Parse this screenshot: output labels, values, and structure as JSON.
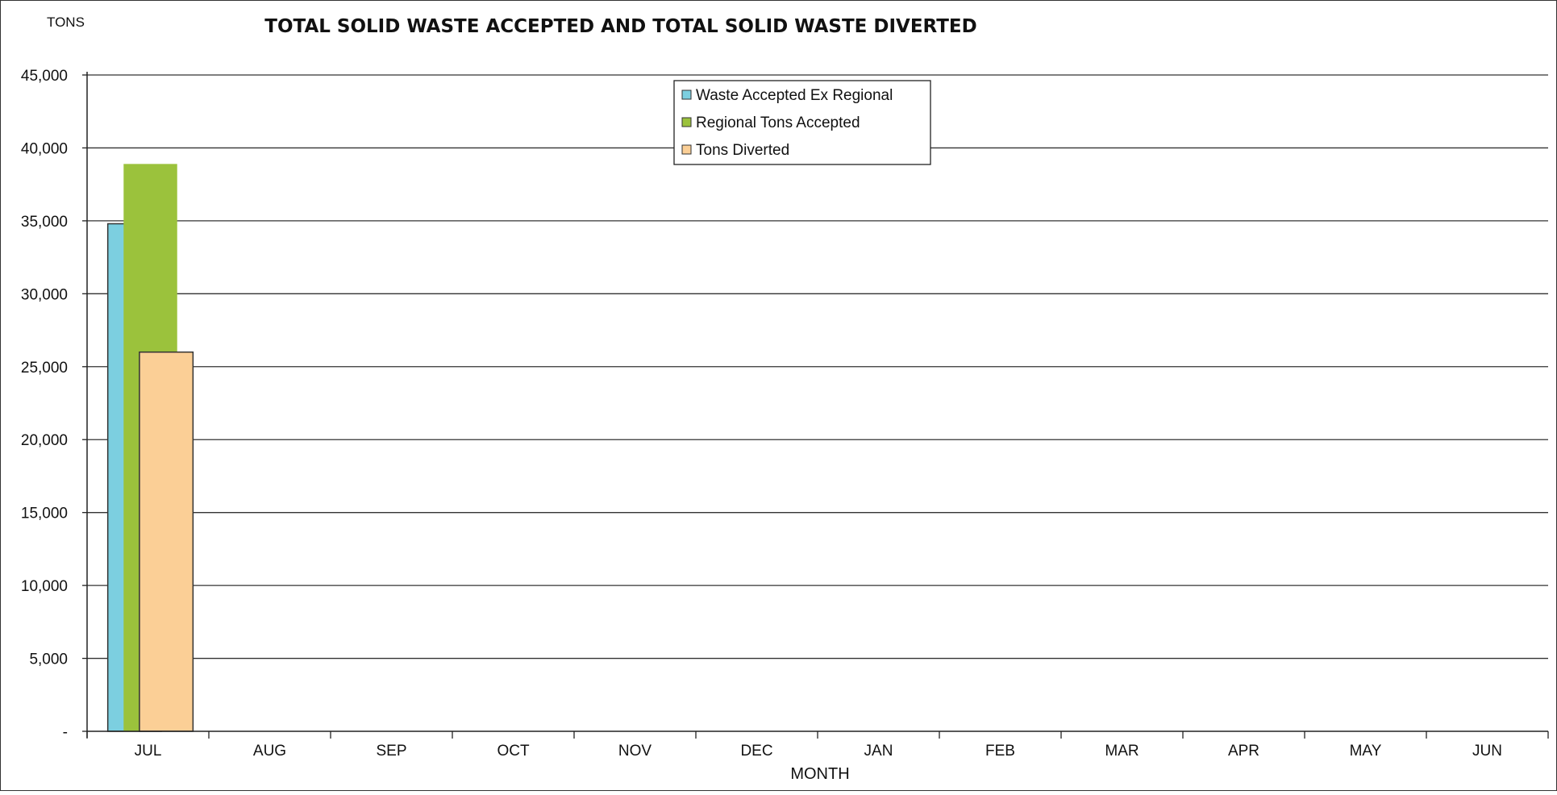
{
  "chart_data": {
    "type": "bar",
    "title": "TOTAL SOLID WASTE ACCEPTED AND TOTAL SOLID WASTE DIVERTED",
    "ylabel": "TONS",
    "xlabel": "MONTH",
    "categories": [
      "JUL",
      "AUG",
      "SEP",
      "OCT",
      "NOV",
      "DEC",
      "JAN",
      "FEB",
      "MAR",
      "APR",
      "MAY",
      "JUN"
    ],
    "ylim": [
      0,
      45000
    ],
    "yticks": [
      {
        "value": 45000,
        "label": "45,000"
      },
      {
        "value": 40000,
        "label": "40,000"
      },
      {
        "value": 35000,
        "label": "35,000"
      },
      {
        "value": 30000,
        "label": "30,000"
      },
      {
        "value": 25000,
        "label": "25,000"
      },
      {
        "value": 20000,
        "label": "20,000"
      },
      {
        "value": 15000,
        "label": "15,000"
      },
      {
        "value": 10000,
        "label": "10,000"
      },
      {
        "value": 5000,
        "label": "5,000"
      },
      {
        "value": 0,
        "label": "-"
      }
    ],
    "grid": true,
    "legend_position": "top-center",
    "series": [
      {
        "name": "Waste Accepted Ex Regional",
        "color": "#7ccfe0",
        "values": [
          34800,
          null,
          null,
          null,
          null,
          null,
          null,
          null,
          null,
          null,
          null,
          null
        ]
      },
      {
        "name": "Regional Tons Accepted",
        "color": "#9bc23c",
        "values": [
          38900,
          null,
          null,
          null,
          null,
          null,
          null,
          null,
          null,
          null,
          null,
          null
        ]
      },
      {
        "name": "Tons Diverted",
        "color": "#fbcf96",
        "values": [
          26000,
          null,
          null,
          null,
          null,
          null,
          null,
          null,
          null,
          null,
          null,
          null
        ]
      }
    ]
  }
}
